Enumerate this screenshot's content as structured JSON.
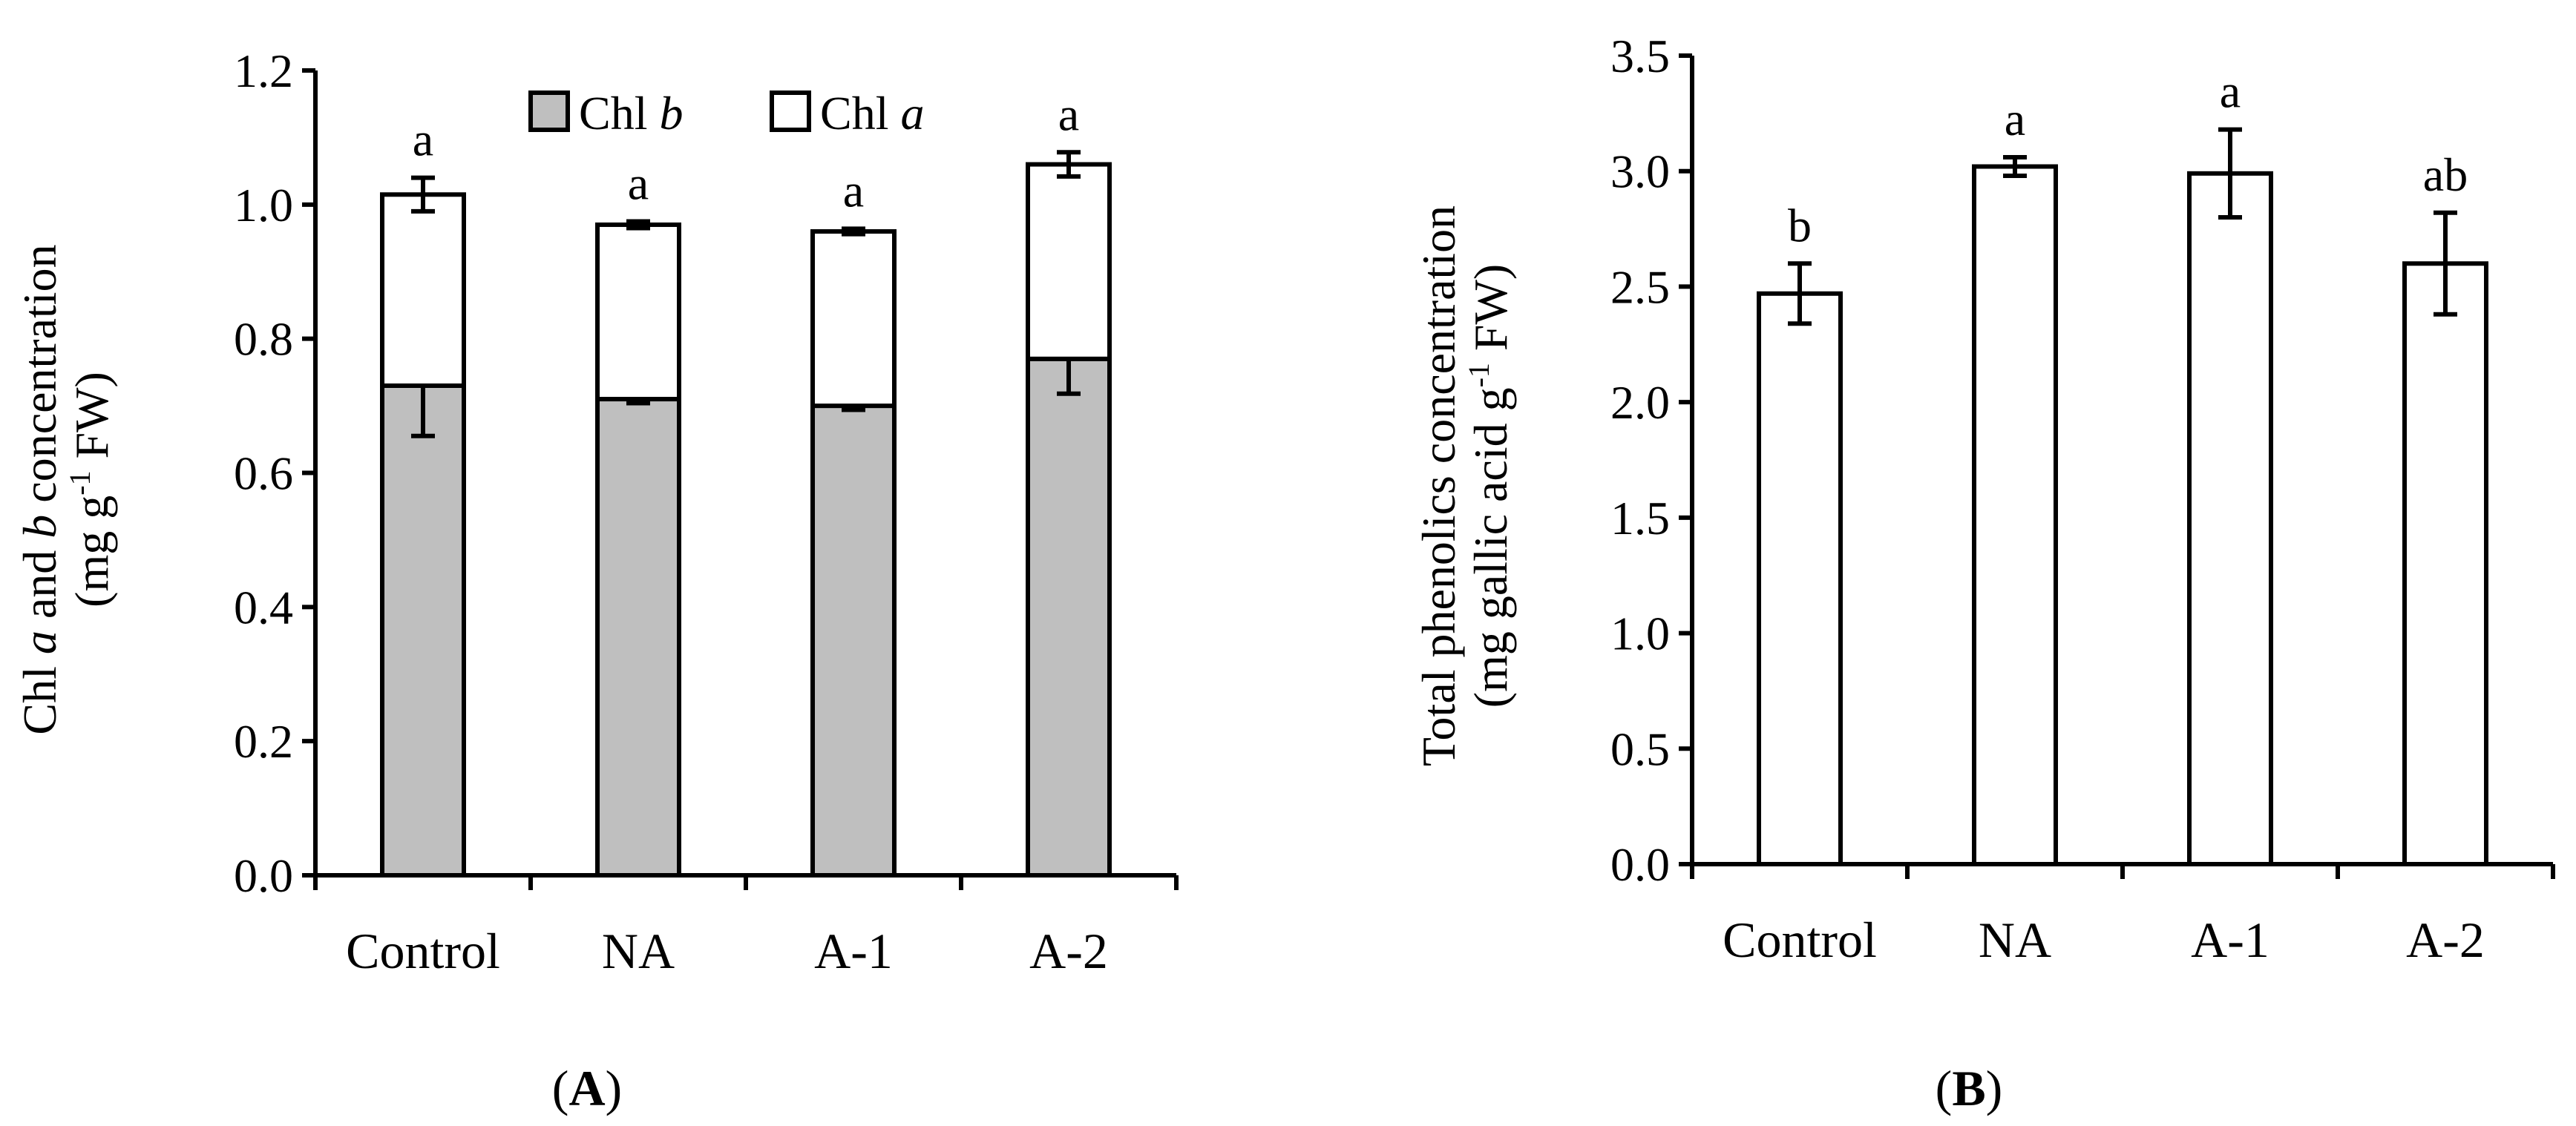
{
  "chart_data": [
    {
      "type": "bar",
      "stacked": true,
      "panel_label": "A",
      "ylabel_line1_parts": [
        "Chl ",
        "a",
        " and ",
        "b",
        " concentration"
      ],
      "ylabel_line2_parts": [
        "(mg g",
        "-1",
        " FW)"
      ],
      "categories": [
        "Control",
        "NA",
        "A-1",
        "A-2"
      ],
      "ylim": [
        0,
        1.2
      ],
      "yticks": [
        "0.0",
        "0.2",
        "0.4",
        "0.6",
        "0.8",
        "1.0",
        "1.2"
      ],
      "legend": {
        "placement": "top-right",
        "entries": [
          {
            "name_prefix": "Chl ",
            "name_italic": "b",
            "color": "#bfbfbf"
          },
          {
            "name_prefix": "Chl ",
            "name_italic": "a",
            "color": "#ffffff"
          }
        ]
      },
      "series": [
        {
          "name": "Chl b",
          "color": "#bfbfbf",
          "values": [
            0.73,
            0.71,
            0.7,
            0.77
          ],
          "errors": [
            0.075,
            0.006,
            0.006,
            0.052
          ],
          "labels": [
            "a",
            "a",
            "a",
            "a"
          ]
        },
        {
          "name": "Chl a",
          "color": "#ffffff",
          "values": [
            0.285,
            0.26,
            0.26,
            0.29
          ],
          "errors": [
            0.025,
            0.005,
            0.004,
            0.018
          ],
          "labels": [
            "a",
            "a",
            "a",
            "a"
          ]
        }
      ]
    },
    {
      "type": "bar",
      "panel_label": "B",
      "ylabel_line1_parts": [
        "Total phenolics concentration"
      ],
      "ylabel_line2_parts": [
        "(mg gallic acid g",
        "-1",
        " FW)"
      ],
      "categories": [
        "Control",
        "NA",
        "A-1",
        "A-2"
      ],
      "ylim": [
        0,
        3.5
      ],
      "yticks": [
        "0.0",
        "0.5",
        "1.0",
        "1.5",
        "2.0",
        "2.5",
        "3.0",
        "3.5"
      ],
      "series": [
        {
          "name": "Total phenolics",
          "color": "#ffffff",
          "values": [
            2.47,
            3.02,
            2.99,
            2.6
          ],
          "errors": [
            0.13,
            0.04,
            0.19,
            0.22
          ],
          "labels": [
            "b",
            "a",
            "a",
            "ab"
          ]
        }
      ]
    }
  ]
}
